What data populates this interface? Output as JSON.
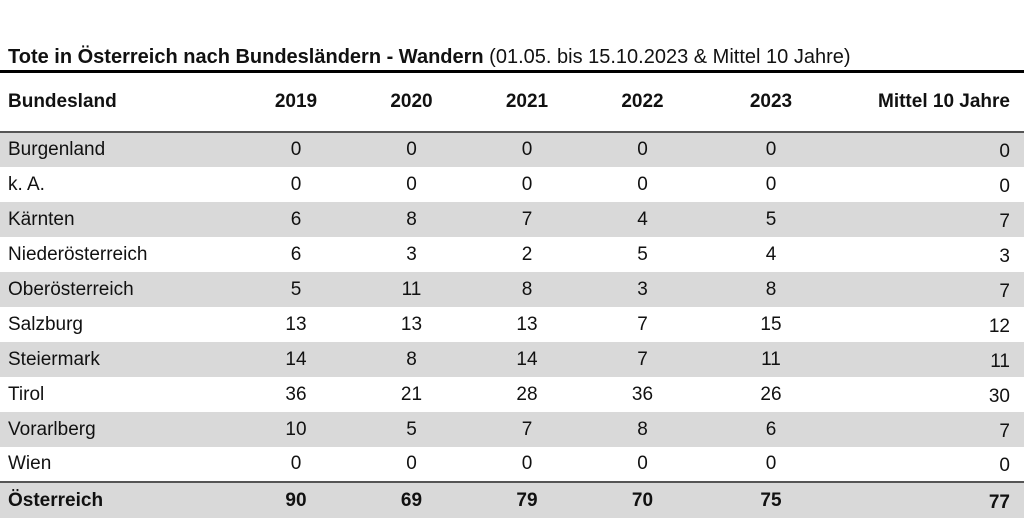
{
  "title": {
    "main": "Tote in Österreich nach Bundesländern - Wandern",
    "suffix": " (01.05. bis 15.10.2023 & Mittel 10 Jahre)"
  },
  "table": {
    "columns": {
      "bundesland": "Bundesland",
      "y2019": "2019",
      "y2020": "2020",
      "y2021": "2021",
      "y2022": "2022",
      "y2023": "2023",
      "mittel": "Mittel 10 Jahre"
    },
    "rows": [
      {
        "label": "Burgenland",
        "values": [
          "0",
          "0",
          "0",
          "0",
          "0",
          "0"
        ]
      },
      {
        "label": "k. A.",
        "values": [
          "0",
          "0",
          "0",
          "0",
          "0",
          "0"
        ]
      },
      {
        "label": "Kärnten",
        "values": [
          "6",
          "8",
          "7",
          "4",
          "5",
          "7"
        ]
      },
      {
        "label": "Niederösterreich",
        "values": [
          "6",
          "3",
          "2",
          "5",
          "4",
          "3"
        ]
      },
      {
        "label": "Oberösterreich",
        "values": [
          "5",
          "11",
          "8",
          "3",
          "8",
          "7"
        ]
      },
      {
        "label": "Salzburg",
        "values": [
          "13",
          "13",
          "13",
          "7",
          "15",
          "12"
        ]
      },
      {
        "label": "Steiermark",
        "values": [
          "14",
          "8",
          "14",
          "7",
          "11",
          "11"
        ]
      },
      {
        "label": "Tirol",
        "values": [
          "36",
          "21",
          "28",
          "36",
          "26",
          "30"
        ]
      },
      {
        "label": "Vorarlberg",
        "values": [
          "10",
          "5",
          "7",
          "8",
          "6",
          "7"
        ]
      },
      {
        "label": "Wien",
        "values": [
          "0",
          "0",
          "0",
          "0",
          "0",
          "0"
        ]
      }
    ],
    "total": {
      "label": "Österreich",
      "values": [
        "90",
        "69",
        "79",
        "70",
        "75",
        "77"
      ]
    }
  },
  "colors": {
    "stripe": "#d9d9d9",
    "separator": "#555555",
    "title_rule": "#000000",
    "text": "#111111"
  }
}
